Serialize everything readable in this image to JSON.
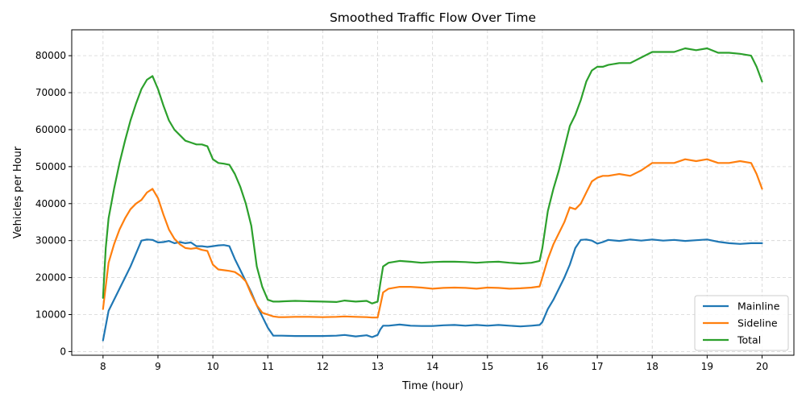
{
  "chart_data": {
    "type": "line",
    "title": "Smoothed Traffic Flow Over Time",
    "xlabel": "Time (hour)",
    "ylabel": "Vehicles per Hour",
    "xlim": [
      7.43,
      20.58
    ],
    "ylim": [
      -1000,
      87000
    ],
    "xticks": [
      8,
      9,
      10,
      11,
      12,
      13,
      14,
      15,
      16,
      17,
      18,
      19,
      20
    ],
    "yticks": [
      0,
      10000,
      20000,
      30000,
      40000,
      50000,
      60000,
      70000,
      80000
    ],
    "grid": true,
    "legend_position": "lower right",
    "series": [
      {
        "name": "Mainline",
        "color": "#1f77b4",
        "x": [
          8.0,
          8.1,
          8.2,
          8.3,
          8.4,
          8.5,
          8.6,
          8.7,
          8.8,
          8.9,
          9.0,
          9.1,
          9.2,
          9.3,
          9.4,
          9.5,
          9.6,
          9.7,
          9.8,
          9.9,
          10.0,
          10.1,
          10.2,
          10.3,
          10.4,
          10.5,
          10.6,
          10.7,
          10.8,
          10.9,
          11.0,
          11.1,
          11.25,
          11.5,
          11.75,
          12.0,
          12.25,
          12.4,
          12.6,
          12.8,
          12.9,
          13.0,
          13.05,
          13.1,
          13.2,
          13.4,
          13.6,
          13.8,
          14.0,
          14.2,
          14.4,
          14.6,
          14.8,
          15.0,
          15.2,
          15.4,
          15.6,
          15.8,
          15.95,
          16.0,
          16.1,
          16.2,
          16.3,
          16.4,
          16.5,
          16.6,
          16.7,
          16.8,
          16.9,
          17.0,
          17.1,
          17.2,
          17.4,
          17.6,
          17.8,
          18.0,
          18.2,
          18.4,
          18.6,
          18.8,
          19.0,
          19.2,
          19.4,
          19.6,
          19.8,
          20.0
        ],
        "y": [
          3000,
          11000,
          14000,
          17000,
          20000,
          23000,
          26500,
          30000,
          30300,
          30200,
          29500,
          29600,
          29900,
          29300,
          29600,
          29300,
          29500,
          28500,
          28500,
          28300,
          28500,
          28700,
          28800,
          28500,
          25000,
          22000,
          19000,
          16000,
          12500,
          9500,
          6500,
          4300,
          4300,
          4200,
          4200,
          4200,
          4300,
          4500,
          4100,
          4400,
          3900,
          4500,
          6000,
          7000,
          7000,
          7300,
          7000,
          6900,
          6900,
          7100,
          7200,
          7000,
          7200,
          7000,
          7200,
          7000,
          6800,
          7000,
          7200,
          8000,
          11500,
          14000,
          17000,
          20000,
          23500,
          28000,
          30200,
          30300,
          30000,
          29200,
          29600,
          30200,
          29900,
          30300,
          30000,
          30300,
          30000,
          30200,
          29900,
          30100,
          30300,
          29700,
          29300,
          29100,
          29300,
          29300
        ]
      },
      {
        "name": "Sideline",
        "color": "#ff7f0e",
        "x": [
          8.0,
          8.1,
          8.2,
          8.3,
          8.4,
          8.5,
          8.6,
          8.7,
          8.8,
          8.9,
          9.0,
          9.1,
          9.2,
          9.3,
          9.4,
          9.5,
          9.6,
          9.7,
          9.8,
          9.9,
          10.0,
          10.1,
          10.2,
          10.3,
          10.4,
          10.5,
          10.6,
          10.7,
          10.8,
          10.9,
          11.0,
          11.1,
          11.2,
          11.3,
          11.5,
          11.75,
          12.0,
          12.25,
          12.4,
          12.6,
          12.8,
          12.9,
          13.0,
          13.05,
          13.1,
          13.2,
          13.4,
          13.6,
          13.8,
          14.0,
          14.2,
          14.4,
          14.6,
          14.8,
          15.0,
          15.2,
          15.4,
          15.6,
          15.8,
          15.95,
          16.0,
          16.1,
          16.2,
          16.3,
          16.4,
          16.5,
          16.6,
          16.7,
          16.8,
          16.9,
          17.0,
          17.1,
          17.2,
          17.4,
          17.6,
          17.8,
          18.0,
          18.2,
          18.4,
          18.6,
          18.8,
          19.0,
          19.2,
          19.4,
          19.6,
          19.8,
          19.9,
          20.0
        ],
        "y": [
          11500,
          24000,
          29000,
          33000,
          36000,
          38500,
          40000,
          41000,
          43000,
          44000,
          41500,
          37000,
          33000,
          30500,
          29000,
          28000,
          27800,
          28000,
          27500,
          27200,
          23500,
          22200,
          22000,
          21800,
          21500,
          20500,
          19000,
          15500,
          12500,
          10500,
          10000,
          9500,
          9300,
          9300,
          9400,
          9400,
          9300,
          9400,
          9500,
          9400,
          9300,
          9200,
          9200,
          12500,
          16000,
          17000,
          17500,
          17500,
          17300,
          17000,
          17200,
          17300,
          17200,
          17000,
          17300,
          17200,
          17000,
          17100,
          17300,
          17600,
          20000,
          25000,
          29000,
          32000,
          35000,
          39000,
          38500,
          40000,
          43000,
          46000,
          47000,
          47500,
          47500,
          48000,
          47500,
          49000,
          51000,
          51000,
          51000,
          52000,
          51500,
          52000,
          51000,
          51000,
          51500,
          51000,
          48000,
          44000
        ]
      },
      {
        "name": "Total",
        "color": "#2ca02c",
        "x": [
          8.0,
          8.05,
          8.1,
          8.2,
          8.3,
          8.4,
          8.5,
          8.6,
          8.7,
          8.8,
          8.9,
          9.0,
          9.1,
          9.2,
          9.3,
          9.4,
          9.5,
          9.6,
          9.7,
          9.8,
          9.9,
          10.0,
          10.1,
          10.2,
          10.3,
          10.4,
          10.5,
          10.6,
          10.7,
          10.8,
          10.9,
          11.0,
          11.1,
          11.2,
          11.3,
          11.5,
          11.75,
          12.0,
          12.25,
          12.4,
          12.6,
          12.8,
          12.9,
          13.0,
          13.05,
          13.1,
          13.2,
          13.4,
          13.6,
          13.8,
          14.0,
          14.2,
          14.4,
          14.6,
          14.8,
          15.0,
          15.2,
          15.4,
          15.6,
          15.8,
          15.95,
          16.0,
          16.1,
          16.2,
          16.3,
          16.4,
          16.5,
          16.6,
          16.7,
          16.8,
          16.9,
          17.0,
          17.1,
          17.2,
          17.4,
          17.6,
          17.8,
          18.0,
          18.2,
          18.4,
          18.6,
          18.8,
          19.0,
          19.2,
          19.4,
          19.6,
          19.8,
          19.9,
          20.0
        ],
        "y": [
          14500,
          28000,
          36000,
          44000,
          51000,
          57000,
          62500,
          67000,
          71000,
          73500,
          74500,
          71000,
          66500,
          62500,
          60000,
          58500,
          57000,
          56500,
          56000,
          56000,
          55500,
          52000,
          51000,
          50800,
          50500,
          48000,
          44500,
          40000,
          34000,
          23000,
          17500,
          14000,
          13500,
          13500,
          13600,
          13700,
          13600,
          13500,
          13400,
          13800,
          13500,
          13700,
          13000,
          13500,
          18500,
          23000,
          24000,
          24500,
          24300,
          24000,
          24200,
          24300,
          24300,
          24200,
          24000,
          24200,
          24300,
          24000,
          23800,
          24000,
          24500,
          28000,
          38000,
          44000,
          49000,
          55000,
          61000,
          64000,
          68000,
          73000,
          76000,
          77000,
          77000,
          77500,
          78000,
          78000,
          79500,
          81000,
          81000,
          81000,
          82000,
          81500,
          82000,
          80800,
          80800,
          80500,
          80000,
          77000,
          73000
        ]
      }
    ]
  }
}
